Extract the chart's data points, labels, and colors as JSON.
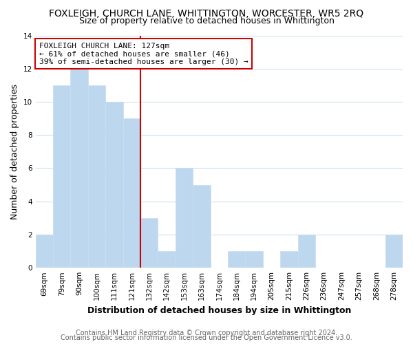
{
  "title": "FOXLEIGH, CHURCH LANE, WHITTINGTON, WORCESTER, WR5 2RQ",
  "subtitle": "Size of property relative to detached houses in Whittington",
  "xlabel": "Distribution of detached houses by size in Whittington",
  "ylabel": "Number of detached properties",
  "bar_labels": [
    "69sqm",
    "79sqm",
    "90sqm",
    "100sqm",
    "111sqm",
    "121sqm",
    "132sqm",
    "142sqm",
    "153sqm",
    "163sqm",
    "174sqm",
    "184sqm",
    "194sqm",
    "205sqm",
    "215sqm",
    "226sqm",
    "236sqm",
    "247sqm",
    "257sqm",
    "268sqm",
    "278sqm"
  ],
  "bar_values": [
    2,
    11,
    12,
    11,
    10,
    9,
    3,
    1,
    6,
    5,
    0,
    1,
    1,
    0,
    1,
    2,
    0,
    0,
    0,
    0,
    2
  ],
  "bar_color": "#bdd7ee",
  "bar_edge_color": "#c8ddf0",
  "reference_line_x": 5.5,
  "annotation_text": "FOXLEIGH CHURCH LANE: 127sqm\n← 61% of detached houses are smaller (46)\n39% of semi-detached houses are larger (30) →",
  "annotation_box_color": "#ffffff",
  "annotation_box_edge_color": "#cc0000",
  "ylim": [
    0,
    14
  ],
  "yticks": [
    0,
    2,
    4,
    6,
    8,
    10,
    12,
    14
  ],
  "footer_line1": "Contains HM Land Registry data © Crown copyright and database right 2024.",
  "footer_line2": "Contains public sector information licensed under the Open Government Licence v3.0.",
  "grid_color": "#cce0f0",
  "ref_line_color": "#cc0000",
  "title_fontsize": 10,
  "subtitle_fontsize": 9,
  "axis_label_fontsize": 9,
  "tick_fontsize": 7.5,
  "annotation_fontsize": 8,
  "footer_fontsize": 7
}
